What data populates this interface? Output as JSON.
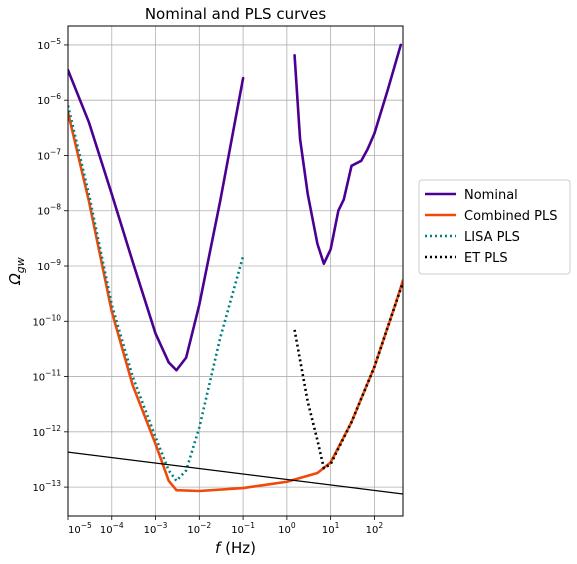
{
  "chart_data": {
    "type": "line",
    "title": "Nominal and PLS curves",
    "xlabel": "f (Hz)",
    "ylabel": "Ω_gw",
    "x_scale": "log",
    "y_scale": "log",
    "xlim": [
      1e-05,
      450
    ],
    "ylim": [
      3e-14,
      2.2e-05
    ],
    "grid": true,
    "legend_position": "center-right-outside",
    "x_ticks": [
      {
        "value": 1e-05,
        "mantissa": "10",
        "exp": "−5"
      },
      {
        "value": 0.0001,
        "mantissa": "10",
        "exp": "−4"
      },
      {
        "value": 0.001,
        "mantissa": "10",
        "exp": "−3"
      },
      {
        "value": 0.01,
        "mantissa": "10",
        "exp": "−2"
      },
      {
        "value": 0.1,
        "mantissa": "10",
        "exp": "−1"
      },
      {
        "value": 1,
        "mantissa": "10",
        "exp": "0"
      },
      {
        "value": 10,
        "mantissa": "10",
        "exp": "1"
      },
      {
        "value": 100,
        "mantissa": "10",
        "exp": "2"
      }
    ],
    "y_ticks": [
      {
        "value": 1e-13,
        "mantissa": "10",
        "exp": "−13"
      },
      {
        "value": 1e-12,
        "mantissa": "10",
        "exp": "−12"
      },
      {
        "value": 1e-11,
        "mantissa": "10",
        "exp": "−11"
      },
      {
        "value": 1e-10,
        "mantissa": "10",
        "exp": "−10"
      },
      {
        "value": 1e-09,
        "mantissa": "10",
        "exp": "−9"
      },
      {
        "value": 1e-08,
        "mantissa": "10",
        "exp": "−8"
      },
      {
        "value": 1e-07,
        "mantissa": "10",
        "exp": "−7"
      },
      {
        "value": 1e-06,
        "mantissa": "10",
        "exp": "−6"
      },
      {
        "value": 1e-05,
        "mantissa": "10",
        "exp": "−5"
      }
    ],
    "series": [
      {
        "name": "Nominal",
        "color": "#4b0092",
        "style": "solid",
        "in_legend": true,
        "segments": [
          [
            [
              1e-05,
              3.5e-06
            ],
            [
              3e-05,
              4e-07
            ],
            [
              0.0001,
              2e-08
            ],
            [
              0.0003,
              1.2e-09
            ],
            [
              0.001,
              6e-11
            ],
            [
              0.002,
              1.8e-11
            ],
            [
              0.003,
              1.3e-11
            ],
            [
              0.005,
              2.2e-11
            ],
            [
              0.01,
              2e-10
            ],
            [
              0.03,
              1.5e-08
            ],
            [
              0.1,
              2.5e-06
            ]
          ],
          [
            [
              1.5,
              6.5e-06
            ],
            [
              2,
              2e-07
            ],
            [
              3,
              2e-08
            ],
            [
              5,
              2.5e-09
            ],
            [
              7,
              1.1e-09
            ],
            [
              10,
              2e-09
            ],
            [
              15,
              1e-08
            ],
            [
              20,
              1.6e-08
            ],
            [
              30,
              6.5e-08
            ],
            [
              50,
              8e-08
            ],
            [
              70,
              1.3e-07
            ],
            [
              100,
              2.5e-07
            ],
            [
              200,
              1.5e-06
            ],
            [
              400,
              1e-05
            ]
          ]
        ]
      },
      {
        "name": "Combined PLS",
        "color": "#f04a0a",
        "style": "solid",
        "in_legend": true,
        "segments": [
          [
            [
              1e-05,
              6e-07
            ],
            [
              3e-05,
              1.5e-08
            ],
            [
              0.0001,
              1.5e-10
            ],
            [
              0.0003,
              7e-12
            ],
            [
              0.001,
              6e-13
            ],
            [
              0.002,
              1.3e-13
            ],
            [
              0.003,
              8.8e-14
            ],
            [
              0.01,
              8.5e-14
            ],
            [
              0.1,
              9.6e-14
            ],
            [
              1,
              1.25e-13
            ],
            [
              5,
              1.8e-13
            ],
            [
              10,
              2.8e-13
            ],
            [
              30,
              1.5e-12
            ],
            [
              100,
              1.5e-11
            ],
            [
              300,
              2e-10
            ],
            [
              450,
              5.5e-10
            ]
          ]
        ]
      },
      {
        "name": "LISA PLS",
        "color": "#008080",
        "style": "dotted",
        "in_legend": true,
        "segments": [
          [
            [
              1e-05,
              8e-07
            ],
            [
              3e-05,
              2e-08
            ],
            [
              0.0001,
              2e-10
            ],
            [
              0.0003,
              1e-11
            ],
            [
              0.001,
              8e-13
            ],
            [
              0.002,
              2e-13
            ],
            [
              0.003,
              1.3e-13
            ],
            [
              0.005,
              2e-13
            ],
            [
              0.01,
              1.2e-12
            ],
            [
              0.03,
              5e-11
            ],
            [
              0.1,
              1.5e-09
            ]
          ]
        ]
      },
      {
        "name": "ET PLS",
        "color": "#000000",
        "style": "dotted",
        "in_legend": true,
        "segments": [
          [
            [
              1.5,
              7e-11
            ],
            [
              2,
              2e-11
            ],
            [
              3,
              3.5e-12
            ],
            [
              5,
              7e-13
            ],
            [
              7,
              2.2e-13
            ],
            [
              10,
              2.6e-13
            ],
            [
              30,
              1.5e-12
            ],
            [
              100,
              1.5e-11
            ],
            [
              300,
              2e-10
            ],
            [
              450,
              5e-10
            ]
          ]
        ]
      },
      {
        "color": "#000000",
        "style": "thin",
        "in_legend": false,
        "segments": [
          [
            [
              1e-05,
              4.3e-13
            ],
            [
              450,
              7.5e-14
            ]
          ]
        ]
      }
    ]
  }
}
